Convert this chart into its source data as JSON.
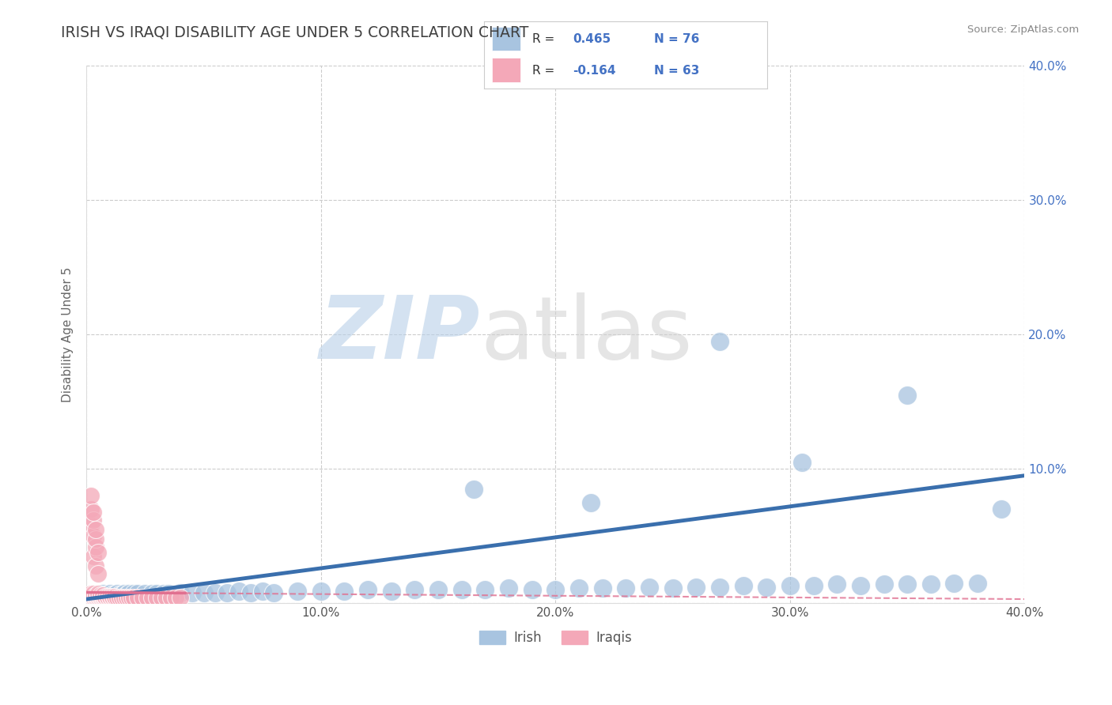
{
  "title": "IRISH VS IRAQI DISABILITY AGE UNDER 5 CORRELATION CHART",
  "source": "Source: ZipAtlas.com",
  "ylabel": "Disability Age Under 5",
  "xlim": [
    0.0,
    0.4
  ],
  "ylim": [
    0.0,
    0.4
  ],
  "irish_color": "#a8c4e0",
  "iraqi_color": "#f4a8b8",
  "irish_line_color": "#3a6fad",
  "iraqi_line_color": "#e07090",
  "irish_R": 0.465,
  "irish_N": 76,
  "iraqi_R": -0.164,
  "iraqi_N": 63,
  "background_color": "#ffffff",
  "grid_color": "#cccccc",
  "title_color": "#404040",
  "irish_x": [
    0.001,
    0.002,
    0.003,
    0.004,
    0.004,
    0.005,
    0.005,
    0.006,
    0.006,
    0.007,
    0.007,
    0.008,
    0.008,
    0.009,
    0.01,
    0.01,
    0.011,
    0.012,
    0.013,
    0.014,
    0.015,
    0.016,
    0.017,
    0.018,
    0.02,
    0.022,
    0.025,
    0.028,
    0.03,
    0.033,
    0.035,
    0.04,
    0.045,
    0.05,
    0.055,
    0.06,
    0.065,
    0.07,
    0.075,
    0.08,
    0.09,
    0.1,
    0.11,
    0.12,
    0.13,
    0.14,
    0.15,
    0.16,
    0.17,
    0.18,
    0.19,
    0.2,
    0.21,
    0.22,
    0.23,
    0.24,
    0.25,
    0.26,
    0.27,
    0.28,
    0.29,
    0.3,
    0.31,
    0.32,
    0.33,
    0.34,
    0.35,
    0.36,
    0.37,
    0.38,
    0.165,
    0.215,
    0.27,
    0.305,
    0.35,
    0.39
  ],
  "irish_y": [
    0.004,
    0.005,
    0.004,
    0.005,
    0.006,
    0.004,
    0.006,
    0.005,
    0.006,
    0.005,
    0.007,
    0.005,
    0.006,
    0.006,
    0.005,
    0.007,
    0.006,
    0.006,
    0.007,
    0.006,
    0.006,
    0.007,
    0.006,
    0.007,
    0.007,
    0.007,
    0.007,
    0.007,
    0.007,
    0.007,
    0.007,
    0.008,
    0.008,
    0.008,
    0.008,
    0.008,
    0.009,
    0.008,
    0.009,
    0.008,
    0.009,
    0.009,
    0.009,
    0.01,
    0.009,
    0.01,
    0.01,
    0.01,
    0.01,
    0.011,
    0.01,
    0.01,
    0.011,
    0.011,
    0.011,
    0.012,
    0.011,
    0.012,
    0.012,
    0.013,
    0.012,
    0.013,
    0.013,
    0.014,
    0.013,
    0.014,
    0.014,
    0.014,
    0.015,
    0.015,
    0.085,
    0.075,
    0.195,
    0.105,
    0.155,
    0.07
  ],
  "iraqi_x": [
    0.001,
    0.001,
    0.002,
    0.002,
    0.002,
    0.003,
    0.003,
    0.003,
    0.003,
    0.004,
    0.004,
    0.004,
    0.005,
    0.005,
    0.005,
    0.005,
    0.006,
    0.006,
    0.006,
    0.007,
    0.007,
    0.007,
    0.008,
    0.008,
    0.009,
    0.009,
    0.01,
    0.01,
    0.011,
    0.011,
    0.012,
    0.012,
    0.013,
    0.014,
    0.015,
    0.016,
    0.017,
    0.018,
    0.019,
    0.02,
    0.022,
    0.024,
    0.026,
    0.028,
    0.03,
    0.032,
    0.034,
    0.036,
    0.038,
    0.04,
    0.003,
    0.004,
    0.005,
    0.002,
    0.003,
    0.004,
    0.002,
    0.003,
    0.004,
    0.005,
    0.002,
    0.003,
    0.004
  ],
  "iraqi_y": [
    0.005,
    0.006,
    0.005,
    0.006,
    0.007,
    0.004,
    0.005,
    0.006,
    0.007,
    0.004,
    0.005,
    0.006,
    0.004,
    0.005,
    0.006,
    0.007,
    0.004,
    0.005,
    0.006,
    0.004,
    0.005,
    0.006,
    0.004,
    0.005,
    0.004,
    0.005,
    0.004,
    0.005,
    0.004,
    0.005,
    0.004,
    0.005,
    0.004,
    0.004,
    0.004,
    0.004,
    0.004,
    0.004,
    0.004,
    0.004,
    0.004,
    0.004,
    0.004,
    0.004,
    0.004,
    0.004,
    0.004,
    0.004,
    0.004,
    0.004,
    0.035,
    0.028,
    0.022,
    0.058,
    0.05,
    0.042,
    0.07,
    0.062,
    0.048,
    0.038,
    0.08,
    0.068,
    0.055
  ]
}
